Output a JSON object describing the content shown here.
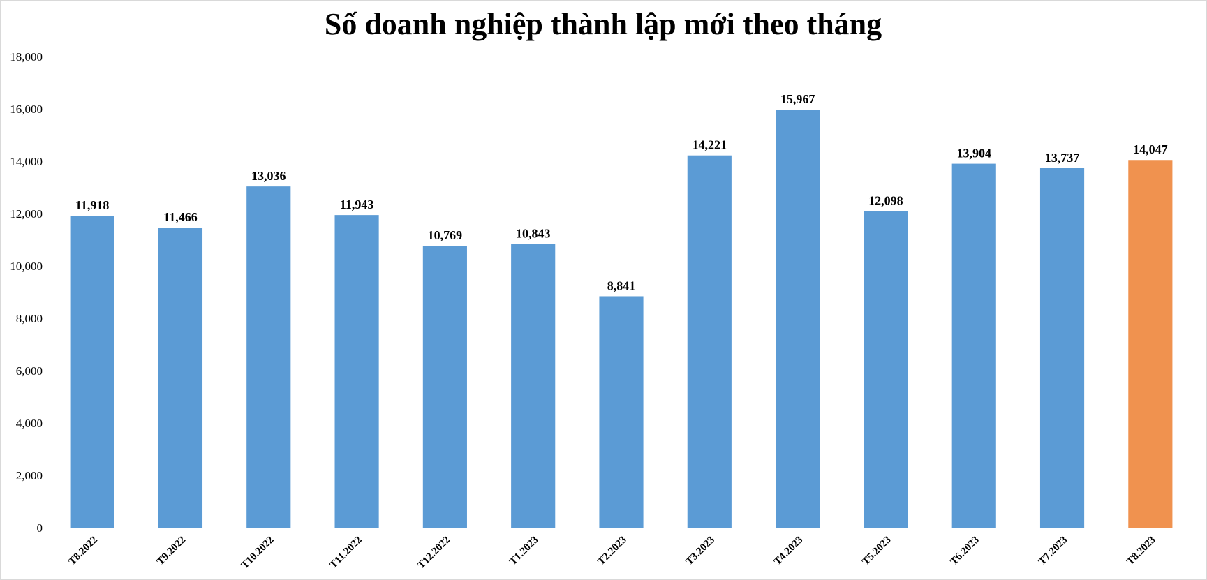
{
  "chart_data": {
    "type": "bar",
    "title": "Số doanh nghiệp thành lập mới theo tháng",
    "xlabel": "",
    "ylabel": "",
    "categories": [
      "T8.2022",
      "T9.2022",
      "T10.2022",
      "T11.2022",
      "T12.2022",
      "T1.2023",
      "T2.2023",
      "T3.2023",
      "T4.2023",
      "T5.2023",
      "T6.2023",
      "T7.2023",
      "T8.2023"
    ],
    "values": [
      11918,
      11466,
      13036,
      11943,
      10769,
      10843,
      8841,
      14221,
      15967,
      12098,
      13904,
      13737,
      14047
    ],
    "value_labels": [
      "11,918",
      "11,466",
      "13,036",
      "11,943",
      "10,769",
      "10,843",
      "8,841",
      "14,221",
      "15,967",
      "12,098",
      "13,904",
      "13,737",
      "14,047"
    ],
    "ylim": [
      0,
      18000
    ],
    "yticks": [
      0,
      2000,
      4000,
      6000,
      8000,
      10000,
      12000,
      14000,
      16000,
      18000
    ],
    "ytick_labels": [
      "0",
      "2,000",
      "4,000",
      "6,000",
      "8,000",
      "10,000",
      "12,000",
      "14,000",
      "16,000",
      "18,000"
    ],
    "grid": false,
    "legend": "none",
    "colors": {
      "bar": "#5b9bd5",
      "highlight": "#f0924f",
      "highlight_category": "T8.2023",
      "axis": "#d9d9d9"
    }
  }
}
